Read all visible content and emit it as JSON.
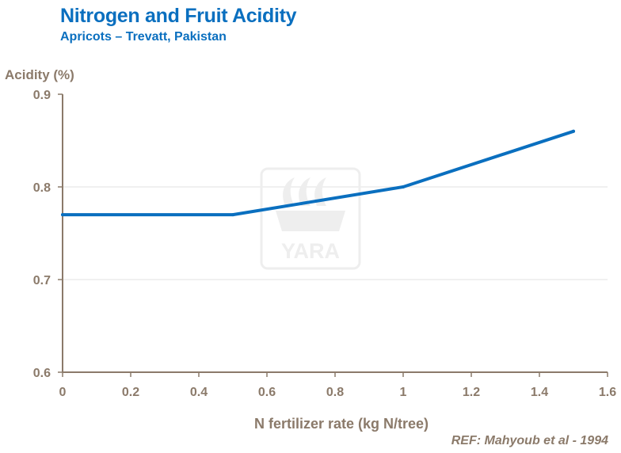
{
  "header": {
    "title": "Nitrogen and Fruit Acidity",
    "subtitle": "Apricots  – Trevatt, Pakistan"
  },
  "reference": "REF: Mahyoub et al - 1994",
  "watermark": {
    "text": "YARA"
  },
  "colors": {
    "title": "#0a6fbf",
    "line": "#0a6fbf",
    "axis_text": "#8b7a6a",
    "grid": "#e0e0e0"
  },
  "chart_data": {
    "type": "line",
    "title": "Nitrogen and Fruit Acidity",
    "subtitle": "Apricots  – Trevatt, Pakistan",
    "xlabel": "N fertilizer rate (kg N/tree)",
    "ylabel": "Acidity (%)",
    "xlim": [
      0,
      1.6
    ],
    "ylim": [
      0.6,
      0.9
    ],
    "x_ticks": [
      "0",
      "0.2",
      "0.4",
      "0.6",
      "0.8",
      "1",
      "1.2",
      "1.4",
      "1.6"
    ],
    "y_ticks": [
      "0.6",
      "0.7",
      "0.8",
      "0.9"
    ],
    "grid": "horizontal",
    "series": [
      {
        "name": "Acidity",
        "x": [
          0,
          0.5,
          1.0,
          1.5
        ],
        "y": [
          0.77,
          0.77,
          0.8,
          0.86
        ]
      }
    ]
  }
}
